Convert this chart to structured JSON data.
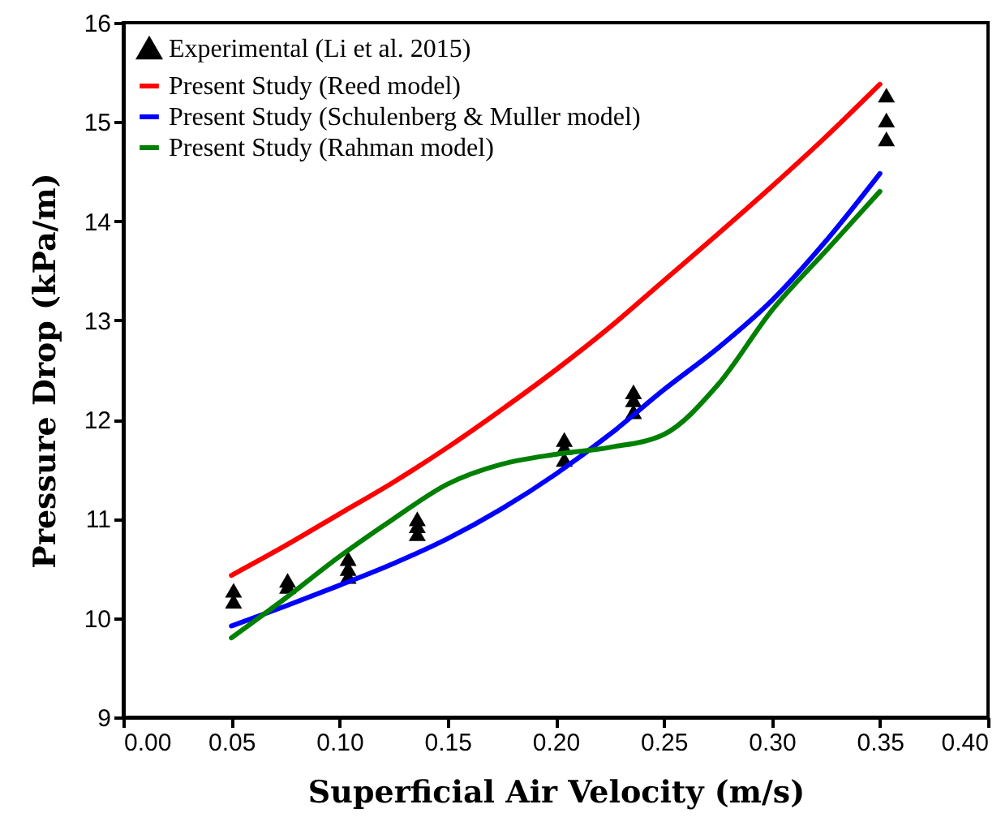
{
  "chart_data": {
    "type": "line",
    "xlabel": "Superficial Air Velocity (m/s)",
    "ylabel": "Pressure Drop (kPa/m)",
    "xlim": [
      0,
      0.4
    ],
    "ylim": [
      9,
      16
    ],
    "xticks": [
      {
        "value": 0,
        "label": "0.00"
      },
      {
        "value": 0.05,
        "label": "0.05"
      },
      {
        "value": 0.1,
        "label": "0.10"
      },
      {
        "value": 0.15,
        "label": "0.15"
      },
      {
        "value": 0.2,
        "label": "0.20"
      },
      {
        "value": 0.25,
        "label": "0.25"
      },
      {
        "value": 0.3,
        "label": "0.30"
      },
      {
        "value": 0.35,
        "label": "0.35"
      },
      {
        "value": 0.4,
        "label": "0.40"
      }
    ],
    "yticks": [
      9,
      10,
      11,
      12,
      13,
      14,
      15,
      16
    ],
    "grid": false,
    "legend": "top left",
    "series": [
      {
        "name": "Experimental (Li et al. 2015)",
        "type": "scatter",
        "marker": "triangle",
        "color": "#000000",
        "x": [
          0.051,
          0.051,
          0.076,
          0.076,
          0.104,
          0.104,
          0.104,
          0.136,
          0.136,
          0.136,
          0.204,
          0.204,
          0.204,
          0.236,
          0.236,
          0.236,
          0.353,
          0.353,
          0.353
        ],
        "values": [
          10.28,
          10.17,
          10.38,
          10.32,
          10.6,
          10.5,
          10.42,
          11.0,
          10.93,
          10.85,
          11.8,
          11.72,
          11.6,
          12.28,
          12.2,
          12.08,
          15.27,
          15.02,
          14.83
        ]
      },
      {
        "name": "Present Study (Reed model)",
        "type": "line",
        "line_style": "solid",
        "color": "#ff0000",
        "x": [
          0.05,
          0.075,
          0.1,
          0.125,
          0.15,
          0.175,
          0.2,
          0.225,
          0.25,
          0.275,
          0.3,
          0.325,
          0.35
        ],
        "values": [
          10.43,
          10.73,
          11.05,
          11.37,
          11.72,
          12.1,
          12.5,
          12.93,
          13.4,
          13.87,
          14.35,
          14.85,
          15.38
        ]
      },
      {
        "name": "Present Study (Schulenberg & Muller model)",
        "type": "line",
        "line_style": "solid",
        "color": "#0000ff",
        "x": [
          0.05,
          0.075,
          0.1,
          0.125,
          0.15,
          0.175,
          0.2,
          0.225,
          0.25,
          0.275,
          0.3,
          0.325,
          0.35
        ],
        "values": [
          9.92,
          10.12,
          10.33,
          10.55,
          10.8,
          11.1,
          11.45,
          11.85,
          12.3,
          12.72,
          13.2,
          13.8,
          14.48
        ]
      },
      {
        "name": "Present Study (Rahman model)",
        "type": "line",
        "line_style": "solid",
        "color": "#008000",
        "x": [
          0.05,
          0.075,
          0.1,
          0.125,
          0.15,
          0.175,
          0.2,
          0.225,
          0.25,
          0.275,
          0.3,
          0.325,
          0.35
        ],
        "values": [
          9.8,
          10.2,
          10.62,
          11.0,
          11.35,
          11.55,
          11.65,
          11.72,
          11.85,
          12.35,
          13.1,
          13.7,
          14.3
        ]
      }
    ]
  }
}
